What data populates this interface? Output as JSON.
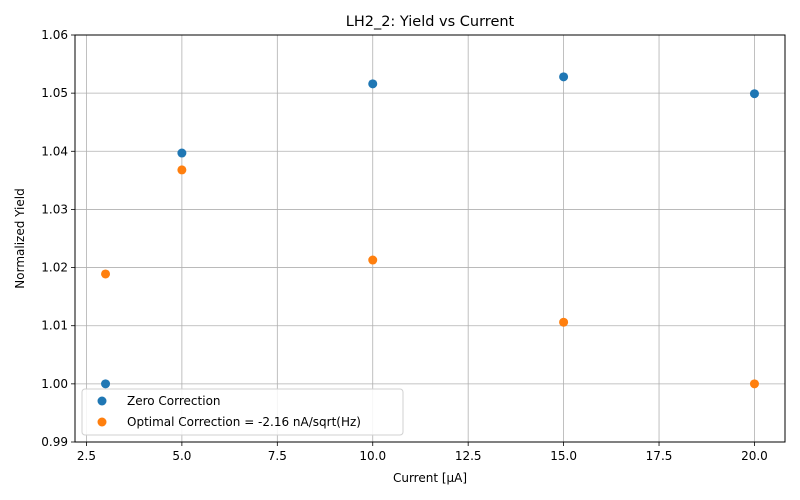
{
  "chart_data": {
    "type": "scatter",
    "title": "LH2_2: Yield vs Current",
    "xlabel": "Current [μA]",
    "ylabel": "Normalized Yield",
    "xlim": [
      2.2,
      20.8
    ],
    "ylim": [
      0.99,
      1.06
    ],
    "xticks": [
      2.5,
      5.0,
      7.5,
      10.0,
      12.5,
      15.0,
      17.5,
      20.0
    ],
    "xtick_labels": [
      "2.5",
      "5.0",
      "7.5",
      "10.0",
      "12.5",
      "15.0",
      "17.5",
      "20.0"
    ],
    "yticks": [
      0.99,
      1.0,
      1.01,
      1.02,
      1.03,
      1.04,
      1.05,
      1.06
    ],
    "ytick_labels": [
      "0.99",
      "1.00",
      "1.01",
      "1.02",
      "1.03",
      "1.04",
      "1.05",
      "1.06"
    ],
    "grid": true,
    "legend_position": "bottom-left",
    "series": [
      {
        "name": "Zero Correction",
        "color": "#1f77b4",
        "x": [
          3,
          5,
          10,
          15,
          20
        ],
        "y": [
          1.0,
          1.0397,
          1.0516,
          1.0528,
          1.0499
        ]
      },
      {
        "name": "Optimal Correction = -2.16 nA/sqrt(Hz)",
        "color": "#ff7f0e",
        "x": [
          3,
          5,
          10,
          15,
          20
        ],
        "y": [
          1.0189,
          1.0368,
          1.0213,
          1.0106,
          1.0
        ]
      }
    ]
  }
}
